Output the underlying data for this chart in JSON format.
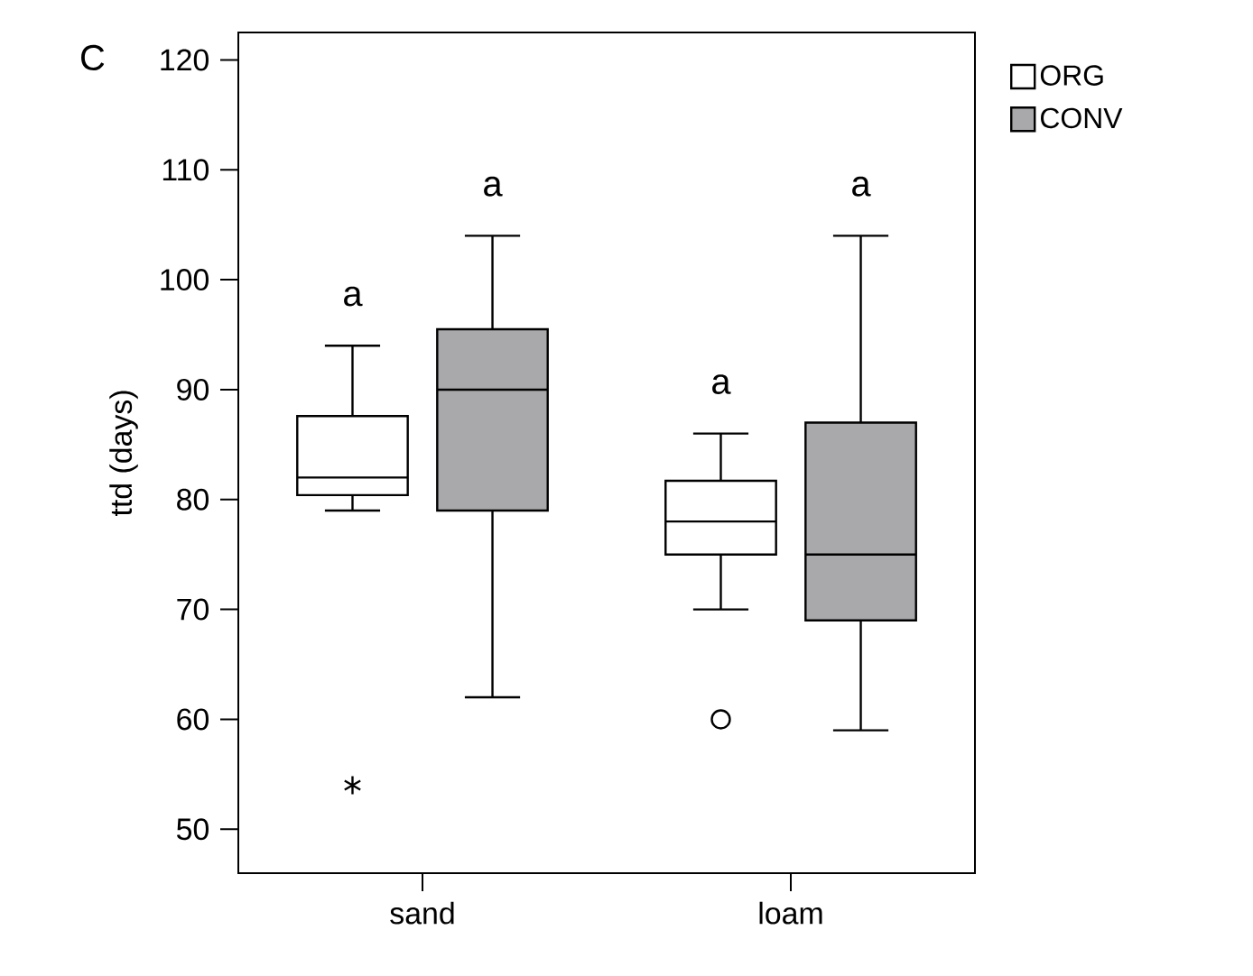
{
  "chart_data": {
    "type": "box",
    "ylabel": "ttd (days)",
    "categories": [
      "sand",
      "loam"
    ],
    "series": [
      {
        "name": "ORG",
        "color": "#ffffff",
        "boxes": [
          {
            "low": 79,
            "q1": 80.4,
            "median": 82,
            "q3": 87.6,
            "high": 94,
            "outliers": [
              54
            ]
          },
          {
            "low": 70,
            "q1": 75,
            "median": 78,
            "q3": 81.7,
            "high": 86,
            "outliers": [
              60
            ]
          }
        ]
      },
      {
        "name": "CONV",
        "color": "#a9a9ab",
        "boxes": [
          {
            "low": 62,
            "q1": 79,
            "median": 90,
            "q3": 95.5,
            "high": 104
          },
          {
            "low": 59,
            "q1": 69,
            "median": 75,
            "q3": 87,
            "high": 104
          }
        ]
      }
    ],
    "ylim": [
      46,
      122.5
    ],
    "yticks": [
      50,
      60,
      70,
      80,
      90,
      100,
      110,
      120
    ],
    "legend": "top right",
    "grid": false,
    "annotations": [
      "C",
      "a",
      "a",
      "a",
      "a"
    ]
  }
}
